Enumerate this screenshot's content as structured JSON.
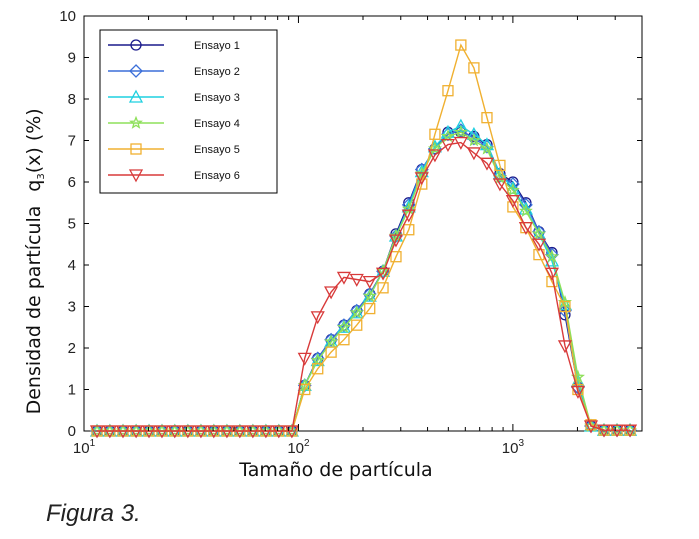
{
  "caption": "Figura 3.",
  "chart_data": {
    "type": "line",
    "xscale": "log",
    "xlim": [
      10,
      4000
    ],
    "ylim": [
      0,
      10
    ],
    "xlabel": "Tamaño de partícula",
    "ylabel": "Densidad de partícula",
    "ylabel_secondary": "q3(x) (%)",
    "yticks": [
      "0",
      "1",
      "2",
      "3",
      "4",
      "5",
      "6",
      "7",
      "8",
      "9",
      "10"
    ],
    "xticks": [
      {
        "value": 10,
        "base": "10",
        "exp": "1"
      },
      {
        "value": 100,
        "base": "10",
        "exp": "2"
      },
      {
        "value": 1000,
        "base": "10",
        "exp": "3"
      }
    ],
    "legend_position": "top-left",
    "grid": false,
    "x": [
      11.5,
      13.2,
      15.2,
      17.5,
      20.1,
      23.1,
      26.5,
      30.5,
      35.1,
      40.3,
      46.4,
      53.3,
      61.3,
      70.5,
      81.0,
      93.2,
      107,
      123,
      142,
      163,
      187,
      215,
      248,
      285,
      327,
      376,
      433,
      498,
      572,
      658,
      757,
      870,
      1000,
      1150,
      1323,
      1521,
      1749,
      2011,
      2313,
      2660,
      3059,
      3518
    ],
    "series": [
      {
        "name": "Ensayo 1",
        "color": "#1a1a8c",
        "marker": "circle",
        "values": [
          0,
          0,
          0,
          0,
          0,
          0,
          0,
          0,
          0,
          0,
          0,
          0,
          0,
          0,
          0,
          0,
          1.1,
          1.75,
          2.2,
          2.55,
          2.9,
          3.3,
          3.85,
          4.75,
          5.5,
          6.3,
          6.8,
          7.2,
          7.2,
          7.1,
          6.9,
          6.2,
          6.0,
          5.5,
          4.8,
          4.3,
          2.8,
          1.05,
          0.12,
          0.02,
          0.02,
          0.02
        ]
      },
      {
        "name": "Ensayo 2",
        "color": "#3b6fd9",
        "marker": "diamond",
        "values": [
          0,
          0,
          0,
          0,
          0,
          0,
          0,
          0,
          0,
          0,
          0,
          0,
          0,
          0,
          0,
          0,
          1.1,
          1.75,
          2.2,
          2.55,
          2.9,
          3.3,
          3.85,
          4.7,
          5.45,
          6.3,
          6.8,
          7.15,
          7.25,
          7.05,
          6.85,
          6.15,
          5.95,
          5.45,
          4.8,
          4.25,
          2.9,
          1.05,
          0.12,
          0.02,
          0.02,
          0.02
        ]
      },
      {
        "name": "Ensayo 3",
        "color": "#1fd0e0",
        "marker": "triangle-up",
        "values": [
          0,
          0,
          0,
          0,
          0,
          0,
          0,
          0,
          0,
          0,
          0,
          0,
          0,
          0,
          0,
          0,
          1.1,
          1.7,
          2.15,
          2.5,
          2.85,
          3.25,
          3.85,
          4.7,
          5.4,
          6.25,
          6.85,
          7.2,
          7.35,
          7.15,
          6.9,
          6.2,
          5.85,
          5.35,
          4.75,
          4.1,
          3.05,
          1.2,
          0.12,
          0.02,
          0.02,
          0.02
        ]
      },
      {
        "name": "Ensayo 4",
        "color": "#8ee05a",
        "marker": "star",
        "values": [
          0,
          0,
          0,
          0,
          0,
          0,
          0,
          0,
          0,
          0,
          0,
          0,
          0,
          0,
          0,
          0,
          1.1,
          1.7,
          2.15,
          2.5,
          2.85,
          3.25,
          3.85,
          4.7,
          5.35,
          6.2,
          6.8,
          7.1,
          7.2,
          7.0,
          6.8,
          6.1,
          5.8,
          5.3,
          4.75,
          4.2,
          3.1,
          1.3,
          0.12,
          0.02,
          0.02,
          0.02
        ]
      },
      {
        "name": "Ensayo 5",
        "color": "#f0b030",
        "marker": "square",
        "values": [
          0,
          0,
          0,
          0,
          0,
          0,
          0,
          0,
          0,
          0,
          0,
          0,
          0,
          0,
          0,
          0,
          1.0,
          1.5,
          1.9,
          2.2,
          2.55,
          2.95,
          3.45,
          4.2,
          4.85,
          5.95,
          7.15,
          8.2,
          9.3,
          8.75,
          7.55,
          6.4,
          5.4,
          4.9,
          4.25,
          3.6,
          3.0,
          1.0,
          0.15,
          0.02,
          0.02,
          0.02
        ]
      },
      {
        "name": "Ensayo 6",
        "color": "#d83a3a",
        "marker": "triangle-down",
        "values": [
          0,
          0,
          0,
          0,
          0,
          0,
          0,
          0,
          0,
          0,
          0,
          0,
          0,
          0,
          0,
          0,
          1.75,
          2.75,
          3.35,
          3.7,
          3.65,
          3.6,
          3.8,
          4.6,
          5.2,
          6.1,
          6.65,
          6.9,
          6.95,
          6.7,
          6.45,
          5.95,
          5.55,
          4.9,
          4.5,
          3.8,
          2.05,
          0.95,
          0.12,
          0.02,
          0.02,
          0.02
        ]
      }
    ]
  }
}
